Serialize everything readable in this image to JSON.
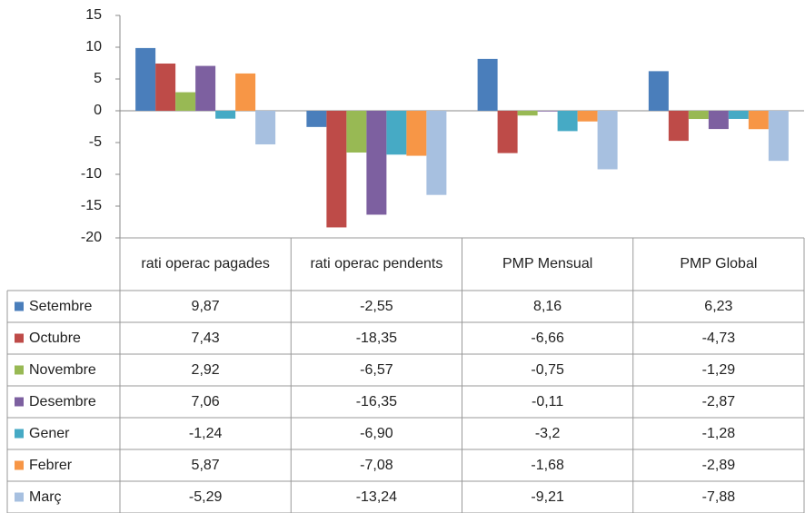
{
  "chart_data": {
    "type": "bar",
    "categories": [
      "rati operac pagades",
      "rati operac pendents",
      "PMP Mensual",
      "PMP Global"
    ],
    "series": [
      {
        "name": "Setembre",
        "color": "#4a7ebb",
        "values": [
          9.87,
          -2.55,
          8.16,
          6.23
        ],
        "value_labels": [
          "9,87",
          "-2,55",
          "8,16",
          "6,23"
        ]
      },
      {
        "name": "Octubre",
        "color": "#be4b48",
        "values": [
          7.43,
          -18.35,
          -6.66,
          -4.73
        ],
        "value_labels": [
          "7,43",
          "-18,35",
          "-6,66",
          "-4,73"
        ]
      },
      {
        "name": "Novembre",
        "color": "#98b954",
        "values": [
          2.92,
          -6.57,
          -0.75,
          -1.29
        ],
        "value_labels": [
          "2,92",
          "-6,57",
          "-0,75",
          "-1,29"
        ]
      },
      {
        "name": "Desembre",
        "color": "#7d60a0",
        "values": [
          7.06,
          -16.35,
          -0.11,
          -2.87
        ],
        "value_labels": [
          "7,06",
          "-16,35",
          "-0,11",
          "-2,87"
        ]
      },
      {
        "name": "Gener",
        "color": "#46aac5",
        "values": [
          -1.24,
          -6.9,
          -3.2,
          -1.28
        ],
        "value_labels": [
          "-1,24",
          "-6,90",
          "-3,2",
          "-1,28"
        ]
      },
      {
        "name": "Febrer",
        "color": "#f79646",
        "values": [
          5.87,
          -7.08,
          -1.68,
          -2.89
        ],
        "value_labels": [
          "5,87",
          "-7,08",
          "-1,68",
          "-2,89"
        ]
      },
      {
        "name": "Març",
        "color": "#a7c0e0",
        "values": [
          -5.29,
          -13.24,
          -9.21,
          -7.88
        ],
        "value_labels": [
          "-5,29",
          "-13,24",
          "-9,21",
          "-7,88"
        ]
      }
    ],
    "ylim": [
      -20,
      15
    ],
    "yticks": [
      -20,
      -15,
      -10,
      -5,
      0,
      5,
      10,
      15
    ],
    "grid": false
  }
}
